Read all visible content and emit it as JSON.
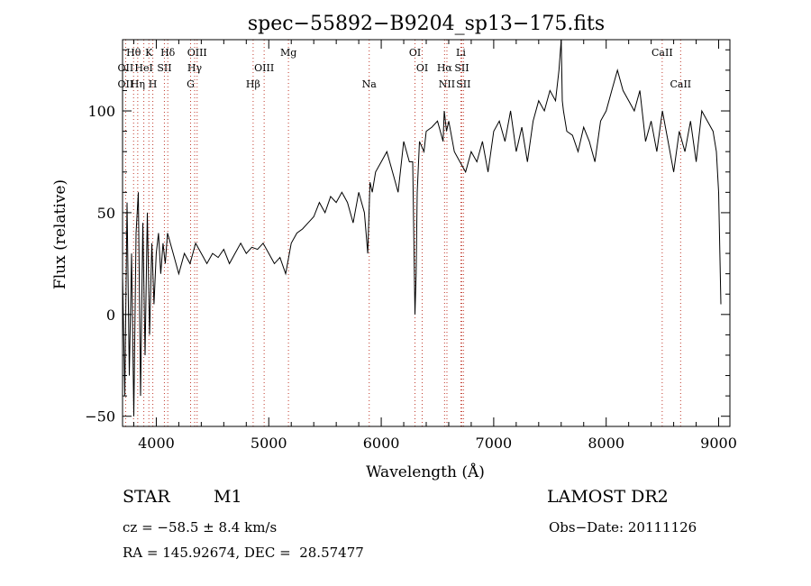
{
  "chart_data": {
    "type": "line",
    "title": "spec−55892−B9204_sp13−175.fits",
    "xlabel": "Wavelength (Å)",
    "ylabel": "Flux (relative)",
    "xlim": [
      3700,
      9100
    ],
    "ylim": [
      -55,
      135
    ],
    "xticks": [
      4000,
      5000,
      6000,
      7000,
      8000,
      9000
    ],
    "yticks": [
      -50,
      0,
      50,
      100
    ],
    "grid": false,
    "series": [
      {
        "color": "#000000",
        "x": [
          3700,
          3720,
          3740,
          3760,
          3780,
          3800,
          3820,
          3840,
          3860,
          3880,
          3900,
          3920,
          3940,
          3960,
          3980,
          4000,
          4020,
          4040,
          4060,
          4080,
          4100,
          4150,
          4200,
          4250,
          4300,
          4350,
          4400,
          4450,
          4500,
          4550,
          4600,
          4650,
          4700,
          4750,
          4800,
          4850,
          4900,
          4950,
          5000,
          5050,
          5100,
          5150,
          5200,
          5250,
          5300,
          5350,
          5400,
          5450,
          5500,
          5550,
          5600,
          5650,
          5700,
          5750,
          5800,
          5850,
          5880,
          5900,
          5920,
          5950,
          6000,
          6050,
          6100,
          6150,
          6200,
          6250,
          6280,
          6300,
          6310,
          6320,
          6340,
          6380,
          6400,
          6450,
          6500,
          6550,
          6560,
          6580,
          6600,
          6650,
          6700,
          6750,
          6800,
          6850,
          6900,
          6950,
          7000,
          7050,
          7100,
          7150,
          7200,
          7250,
          7300,
          7350,
          7400,
          7450,
          7500,
          7550,
          7580,
          7600,
          7610,
          7620,
          7650,
          7700,
          7750,
          7800,
          7850,
          7900,
          7950,
          8000,
          8050,
          8100,
          8150,
          8200,
          8250,
          8300,
          8350,
          8400,
          8450,
          8500,
          8550,
          8600,
          8650,
          8700,
          8750,
          8800,
          8850,
          8900,
          8950,
          8980,
          9000,
          9020
        ],
        "y": [
          20,
          -40,
          55,
          -30,
          30,
          -50,
          40,
          60,
          -40,
          45,
          -20,
          50,
          -10,
          35,
          5,
          30,
          40,
          20,
          35,
          25,
          40,
          30,
          20,
          30,
          25,
          35,
          30,
          25,
          30,
          28,
          32,
          25,
          30,
          35,
          30,
          33,
          32,
          35,
          30,
          25,
          28,
          20,
          35,
          40,
          42,
          45,
          48,
          55,
          50,
          58,
          55,
          60,
          55,
          45,
          60,
          50,
          30,
          65,
          60,
          70,
          75,
          80,
          70,
          60,
          85,
          75,
          75,
          0,
          20,
          60,
          85,
          80,
          90,
          92,
          95,
          85,
          100,
          90,
          95,
          80,
          75,
          70,
          80,
          75,
          85,
          70,
          90,
          95,
          85,
          100,
          80,
          92,
          75,
          95,
          105,
          100,
          110,
          105,
          120,
          135,
          105,
          100,
          90,
          88,
          80,
          92,
          85,
          75,
          95,
          100,
          110,
          120,
          110,
          105,
          100,
          110,
          85,
          95,
          80,
          100,
          85,
          70,
          90,
          80,
          95,
          75,
          100,
          95,
          90,
          80,
          60,
          5
        ]
      }
    ],
    "line_labels": [
      {
        "text": "Hθ",
        "x": 3798,
        "row": 1
      },
      {
        "text": "K",
        "x": 3934,
        "row": 1
      },
      {
        "text": "Hδ",
        "x": 4102,
        "row": 1
      },
      {
        "text": "OIII",
        "x": 4363,
        "row": 1
      },
      {
        "text": "Mg",
        "x": 5175,
        "row": 1
      },
      {
        "text": "OI",
        "x": 6300,
        "row": 1
      },
      {
        "text": "Li",
        "x": 6708,
        "row": 1
      },
      {
        "text": "CaII",
        "x": 8498,
        "row": 1
      },
      {
        "text": "OII",
        "x": 3727,
        "row": 2
      },
      {
        "text": "HeI",
        "x": 3889,
        "row": 2
      },
      {
        "text": "SII",
        "x": 4072,
        "row": 2
      },
      {
        "text": "Hγ",
        "x": 4341,
        "row": 2
      },
      {
        "text": "OIII",
        "x": 4959,
        "row": 2
      },
      {
        "text": "OI",
        "x": 6364,
        "row": 2
      },
      {
        "text": "Hα",
        "x": 6563,
        "row": 2
      },
      {
        "text": "SII",
        "x": 6716,
        "row": 2
      },
      {
        "text": "OII",
        "x": 3727,
        "row": 3
      },
      {
        "text": "Hη",
        "x": 3835,
        "row": 3
      },
      {
        "text": "H",
        "x": 3969,
        "row": 3
      },
      {
        "text": "G",
        "x": 4305,
        "row": 3
      },
      {
        "text": "Hβ",
        "x": 4861,
        "row": 3
      },
      {
        "text": "Na",
        "x": 5893,
        "row": 3
      },
      {
        "text": "NII",
        "x": 6584,
        "row": 3
      },
      {
        "text": "SII",
        "x": 6731,
        "row": 3
      },
      {
        "text": "CaII",
        "x": 8662,
        "row": 3
      }
    ],
    "line_marker_color": "#c0392b"
  },
  "info": {
    "object_class": "STAR",
    "subclass": "M1",
    "survey": "LAMOST DR2",
    "redshift": "cz = −58.5 ± 8.4 km/s",
    "obs_date": "Obs−Date: 20111126",
    "coords": "RA = 145.92674, DEC =  28.57477"
  }
}
